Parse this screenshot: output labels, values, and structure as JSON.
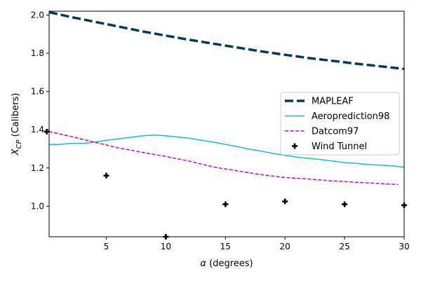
{
  "chart_data": {
    "type": "line",
    "xlabel": "α (degrees)",
    "ylabel": "X_CP (Calibers)",
    "xlim": [
      0.2,
      30
    ],
    "ylim": [
      0.84,
      2.02
    ],
    "xticks": [
      5,
      10,
      15,
      20,
      25,
      30
    ],
    "yticks": [
      1.0,
      1.2,
      1.4,
      1.6,
      1.8,
      2.0
    ],
    "ytick_labels": [
      "1.0",
      "1.2",
      "1.4",
      "1.6",
      "1.8",
      "2.0"
    ],
    "grid": false,
    "legend_position": "center-right",
    "series": [
      {
        "name": "MAPLEAF",
        "style": "dashed-thick",
        "color": "#003b57",
        "x": [
          0.2,
          2,
          4,
          6,
          8,
          10,
          12,
          14,
          16,
          18,
          20,
          22,
          24,
          26,
          28,
          30
        ],
        "y": [
          2.015,
          1.99,
          1.965,
          1.94,
          1.915,
          1.892,
          1.87,
          1.85,
          1.83,
          1.81,
          1.792,
          1.775,
          1.76,
          1.745,
          1.732,
          1.718
        ]
      },
      {
        "name": "Aeroprediction98",
        "style": "solid",
        "color": "#17becf",
        "x": [
          0.2,
          1,
          2,
          3,
          4,
          5,
          6,
          7,
          8,
          9,
          10,
          11,
          12,
          13,
          14,
          15,
          16,
          17,
          18,
          19,
          20,
          21,
          22,
          23,
          24,
          25,
          26,
          27,
          28,
          29,
          30
        ],
        "y": [
          1.323,
          1.323,
          1.328,
          1.328,
          1.335,
          1.345,
          1.352,
          1.36,
          1.368,
          1.372,
          1.368,
          1.362,
          1.355,
          1.345,
          1.335,
          1.323,
          1.312,
          1.298,
          1.288,
          1.276,
          1.266,
          1.257,
          1.25,
          1.244,
          1.236,
          1.228,
          1.224,
          1.218,
          1.215,
          1.211,
          1.204
        ]
      },
      {
        "name": "Datcom97",
        "style": "dashed",
        "color": "#cc00cc",
        "x": [
          0.2,
          2,
          4,
          6,
          8,
          10,
          12,
          14,
          16,
          18,
          20,
          22,
          24,
          26,
          28,
          29.5
        ],
        "y": [
          1.39,
          1.365,
          1.335,
          1.305,
          1.282,
          1.26,
          1.235,
          1.205,
          1.185,
          1.165,
          1.15,
          1.142,
          1.132,
          1.125,
          1.118,
          1.113
        ]
      },
      {
        "name": "Wind Tunnel",
        "style": "marker-plus",
        "color": "#000000",
        "x": [
          0,
          5,
          10,
          15,
          20,
          25,
          30
        ],
        "y": [
          1.39,
          1.16,
          0.84,
          1.01,
          1.025,
          1.01,
          1.005
        ]
      }
    ]
  }
}
